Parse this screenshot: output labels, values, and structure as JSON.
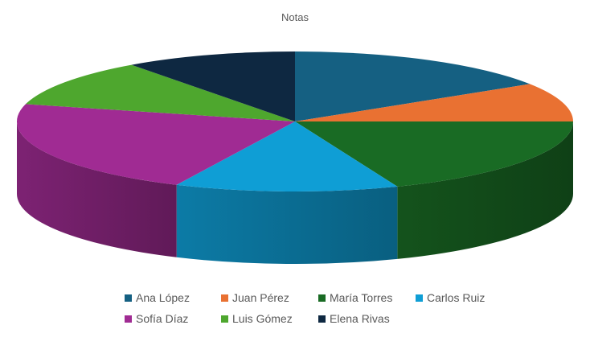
{
  "chart_data": {
    "type": "pie",
    "title": "Notas",
    "style": "3d",
    "legend_position": "bottom",
    "categories": [
      "Ana López",
      "Juan Pérez",
      "María Torres",
      "Carlos Ruiz",
      "Sofía Díaz",
      "Luis Gómez",
      "Elena Rivas"
    ],
    "values": [
      16,
      9,
      19,
      13,
      22,
      11,
      10
    ],
    "colors": [
      "#156082",
      "#E97132",
      "#196B24",
      "#0F9ED5",
      "#A02B93",
      "#4EA72E",
      "#0E2841"
    ]
  }
}
